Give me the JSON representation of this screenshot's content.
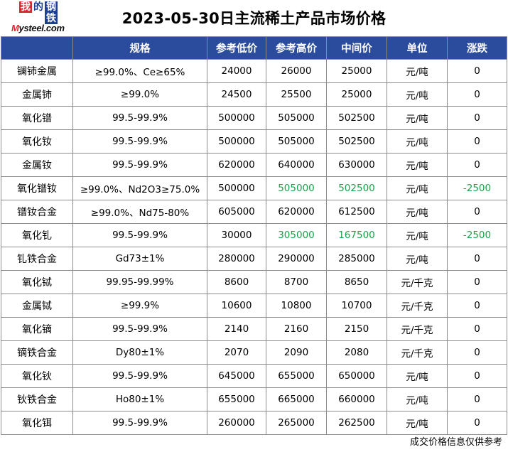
{
  "logo": {
    "chars": [
      "我",
      "的",
      "钢",
      "铁"
    ],
    "brand_prefix": "M",
    "brand_rest": "ysteel.com"
  },
  "title": "2023-05-30日主流稀土产品市场价格",
  "headers": [
    "",
    "规格",
    "参考低价",
    "参考高价",
    "中间价",
    "单位",
    "涨跌"
  ],
  "rows": [
    {
      "name": "镧铈金属",
      "spec": "≥99.0%、Ce≥65%",
      "low": "24000",
      "high": "26000",
      "mid": "25000",
      "unit": "元/吨",
      "change": "0",
      "highlight": false
    },
    {
      "name": "金属铈",
      "spec": "≥99.0%",
      "low": "24500",
      "high": "25500",
      "mid": "25000",
      "unit": "元/吨",
      "change": "0",
      "highlight": false
    },
    {
      "name": "氧化镨",
      "spec": "99.5-99.9%",
      "low": "500000",
      "high": "505000",
      "mid": "502500",
      "unit": "元/吨",
      "change": "0",
      "highlight": false
    },
    {
      "name": "氧化钕",
      "spec": "99.5-99.9%",
      "low": "500000",
      "high": "505000",
      "mid": "502500",
      "unit": "元/吨",
      "change": "0",
      "highlight": false
    },
    {
      "name": "金属钕",
      "spec": "99.5-99.9%",
      "low": "620000",
      "high": "640000",
      "mid": "630000",
      "unit": "元/吨",
      "change": "0",
      "highlight": false
    },
    {
      "name": "氧化镨钕",
      "spec": "≥99.0%、Nd2O3≥75.0%",
      "low": "500000",
      "high": "505000",
      "mid": "502500",
      "unit": "元/吨",
      "change": "-2500",
      "highlight": true
    },
    {
      "name": "镨钕合金",
      "spec": "≥99.0%、Nd75-80%",
      "low": "605000",
      "high": "620000",
      "mid": "612500",
      "unit": "元/吨",
      "change": "0",
      "highlight": false
    },
    {
      "name": "氧化钆",
      "spec": "99.5-99.9%",
      "low": "30000",
      "high": "305000",
      "mid": "167500",
      "unit": "元/吨",
      "change": "-2500",
      "highlight": true
    },
    {
      "name": "钆铁合金",
      "spec": "Gd73±1%",
      "low": "280000",
      "high": "290000",
      "mid": "285000",
      "unit": "元/吨",
      "change": "0",
      "highlight": false
    },
    {
      "name": "氧化铽",
      "spec": "99.95-99.99%",
      "low": "8600",
      "high": "8700",
      "mid": "8650",
      "unit": "元/千克",
      "change": "0",
      "highlight": false
    },
    {
      "name": "金属铽",
      "spec": "≥99.9%",
      "low": "10600",
      "high": "10800",
      "mid": "10700",
      "unit": "元/千克",
      "change": "0",
      "highlight": false
    },
    {
      "name": "氧化镝",
      "spec": "99.5-99.9%",
      "low": "2140",
      "high": "2160",
      "mid": "2150",
      "unit": "元/千克",
      "change": "0",
      "highlight": false
    },
    {
      "name": "镝铁合金",
      "spec": "Dy80±1%",
      "low": "2070",
      "high": "2090",
      "mid": "2080",
      "unit": "元/千克",
      "change": "0",
      "highlight": false
    },
    {
      "name": "氧化钬",
      "spec": "99.5-99.9%",
      "low": "645000",
      "high": "655000",
      "mid": "650000",
      "unit": "元/吨",
      "change": "0",
      "highlight": false
    },
    {
      "name": "钬铁合金",
      "spec": "Ho80±1%",
      "low": "655000",
      "high": "665000",
      "mid": "660000",
      "unit": "元/吨",
      "change": "0",
      "highlight": false
    },
    {
      "name": "氧化铒",
      "spec": "99.5-99.9%",
      "low": "260000",
      "high": "265000",
      "mid": "262500",
      "unit": "元/吨",
      "change": "0",
      "highlight": false
    }
  ],
  "footer": "成交价格信息仅供参考",
  "colors": {
    "header_bg": "#2b4c9c",
    "header_text": "#ffffff",
    "highlight_text": "#19a34a",
    "logo_red": "#d7282f",
    "logo_blue": "#1c3f94"
  }
}
